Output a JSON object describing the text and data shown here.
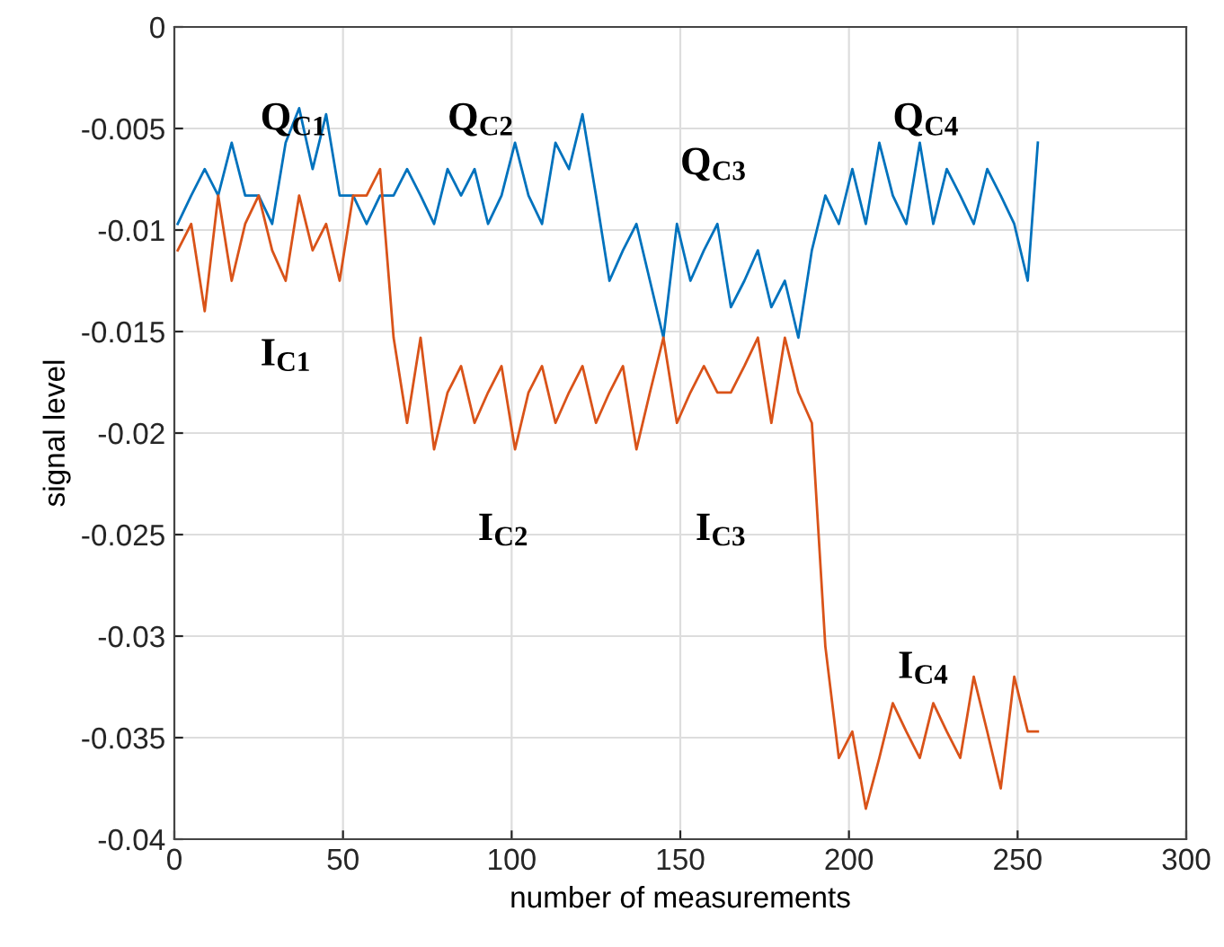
{
  "chart_data": {
    "type": "line",
    "xlabel": "number of measurements",
    "ylabel": "signal level",
    "xlim": [
      0,
      300
    ],
    "ylim": [
      -0.04,
      0
    ],
    "xticks": [
      0,
      50,
      100,
      150,
      200,
      250,
      300
    ],
    "yticks": [
      -0.04,
      -0.035,
      -0.03,
      -0.025,
      -0.02,
      -0.015,
      -0.01,
      -0.005,
      0
    ],
    "grid": true,
    "legend": false,
    "marker": "none",
    "line_style": "solid",
    "x": [
      1,
      5,
      9,
      13,
      17,
      21,
      25,
      29,
      33,
      37,
      41,
      45,
      49,
      53,
      57,
      61,
      65,
      69,
      73,
      77,
      81,
      85,
      89,
      93,
      97,
      101,
      105,
      109,
      113,
      117,
      121,
      125,
      129,
      133,
      137,
      141,
      145,
      149,
      153,
      157,
      161,
      165,
      169,
      173,
      177,
      181,
      185,
      189,
      193,
      197,
      201,
      205,
      209,
      213,
      217,
      221,
      225,
      229,
      233,
      237,
      241,
      245,
      249,
      253,
      256
    ],
    "series": [
      {
        "color": "#0072bd",
        "values": [
          -0.0097,
          -0.0083,
          -0.007,
          -0.0083,
          -0.0057,
          -0.0083,
          -0.0083,
          -0.0097,
          -0.0057,
          -0.004,
          -0.007,
          -0.0043,
          -0.0083,
          -0.0083,
          -0.0097,
          -0.0083,
          -0.0083,
          -0.007,
          -0.0083,
          -0.0097,
          -0.007,
          -0.0083,
          -0.007,
          -0.0097,
          -0.0083,
          -0.0057,
          -0.0083,
          -0.0097,
          -0.0057,
          -0.007,
          -0.0043,
          -0.0083,
          -0.0125,
          -0.011,
          -0.0097,
          -0.0125,
          -0.0153,
          -0.0097,
          -0.0125,
          -0.011,
          -0.0097,
          -0.0138,
          -0.0125,
          -0.011,
          -0.0138,
          -0.0125,
          -0.0153,
          -0.011,
          -0.0083,
          -0.0097,
          -0.007,
          -0.0097,
          -0.0057,
          -0.0083,
          -0.0097,
          -0.0057,
          -0.0097,
          -0.007,
          -0.0083,
          -0.0097,
          -0.007,
          -0.0083,
          -0.0097,
          -0.0125,
          -0.0057
        ]
      },
      {
        "color": "#d95319",
        "values": [
          -0.011,
          -0.0097,
          -0.014,
          -0.0083,
          -0.0125,
          -0.0097,
          -0.0083,
          -0.011,
          -0.0125,
          -0.0083,
          -0.011,
          -0.0097,
          -0.0125,
          -0.0083,
          -0.0083,
          -0.007,
          -0.0153,
          -0.0195,
          -0.0153,
          -0.0208,
          -0.018,
          -0.0167,
          -0.0195,
          -0.018,
          -0.0167,
          -0.0208,
          -0.018,
          -0.0167,
          -0.0195,
          -0.018,
          -0.0167,
          -0.0195,
          -0.018,
          -0.0167,
          -0.0208,
          -0.018,
          -0.0153,
          -0.0195,
          -0.018,
          -0.0167,
          -0.018,
          -0.018,
          -0.0167,
          -0.0153,
          -0.0195,
          -0.0153,
          -0.018,
          -0.0195,
          -0.0305,
          -0.036,
          -0.0347,
          -0.0385,
          -0.036,
          -0.0333,
          -0.0347,
          -0.036,
          -0.0333,
          -0.0347,
          -0.036,
          -0.032,
          -0.0347,
          -0.0375,
          -0.032,
          -0.0347,
          -0.0347
        ]
      }
    ],
    "annotations": [
      "Q$_{C1}$",
      "Q$_{C2}$",
      "Q$_{C3}$",
      "Q$_{C4}$",
      "I$_{C1}$",
      "I$_{C2}$",
      "I$_{C3}$",
      "I$_{C4}$"
    ]
  }
}
